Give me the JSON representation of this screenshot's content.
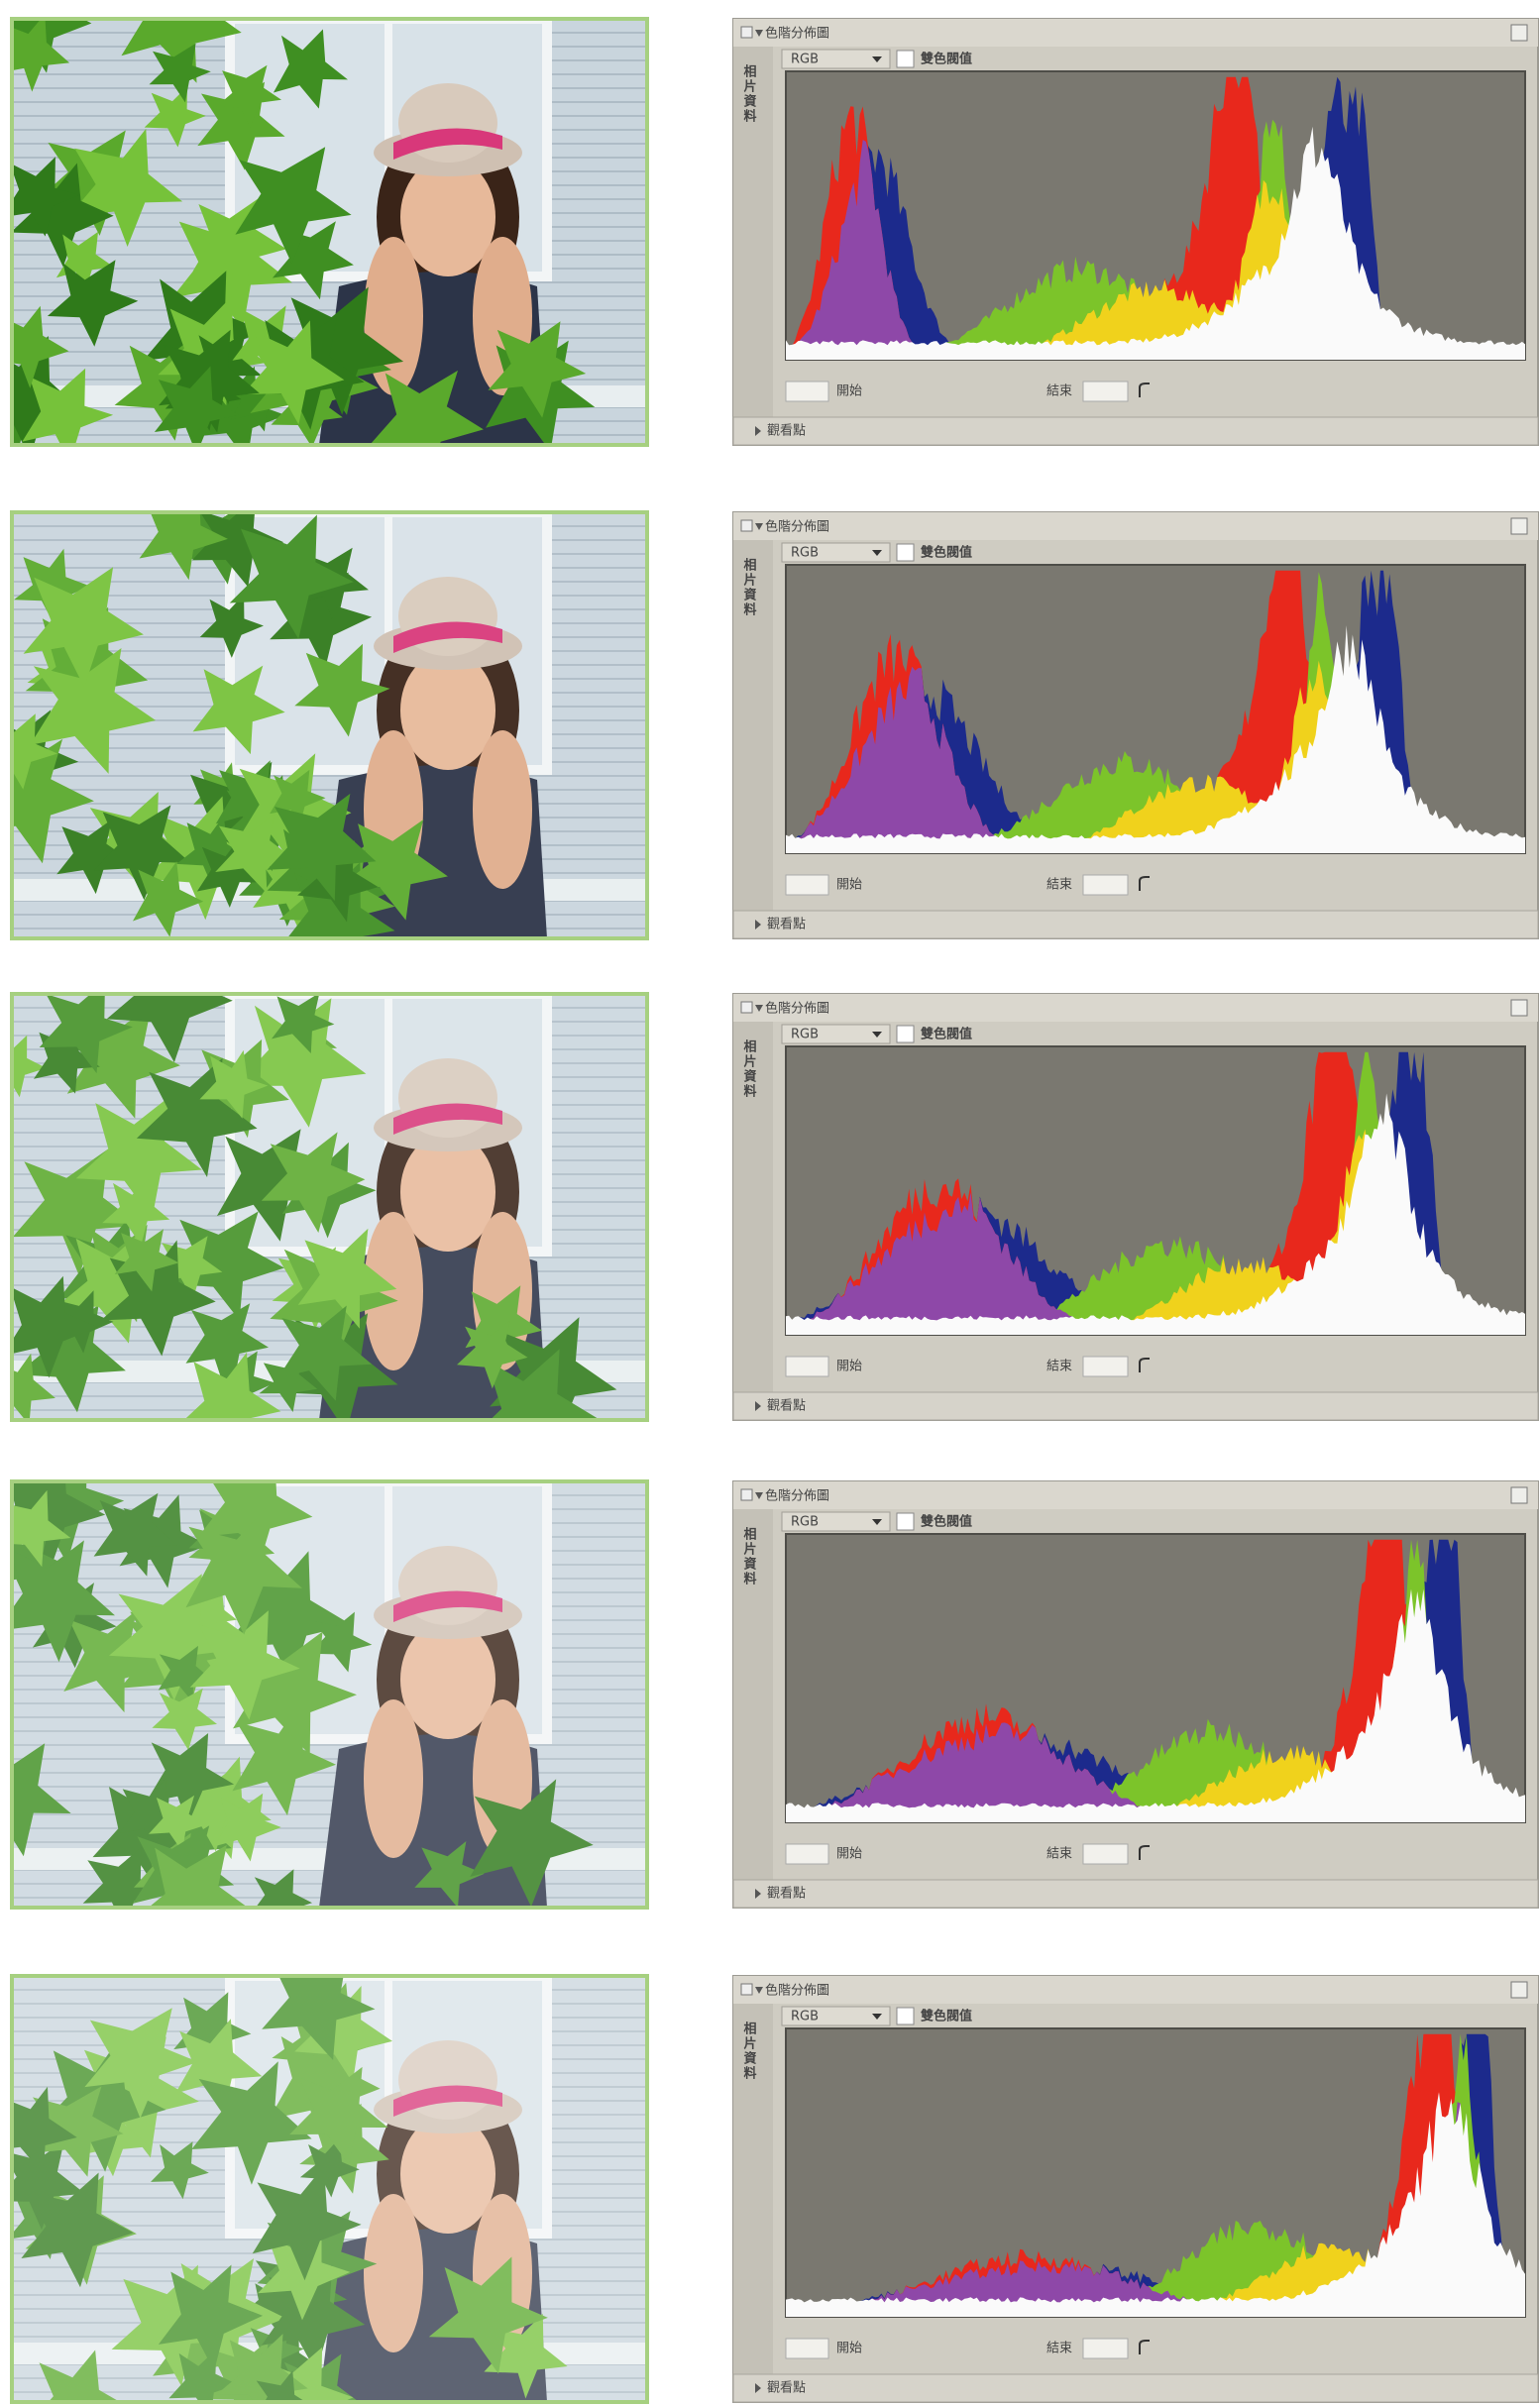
{
  "panels": [
    {
      "title": "色階分佈圖",
      "side_tab": "相片資料",
      "channel": "RGB",
      "checkbox_label": "雙色閥值",
      "start_label": "開始",
      "end_label": "結束",
      "footer": "觀看點"
    },
    {
      "title": "色階分佈圖",
      "side_tab": "相片資料",
      "channel": "RGB",
      "checkbox_label": "雙色閥值",
      "start_label": "開始",
      "end_label": "結束",
      "footer": "觀看點"
    },
    {
      "title": "色階分佈圖",
      "side_tab": "相片資料",
      "channel": "RGB",
      "checkbox_label": "雙色閥值",
      "start_label": "開始",
      "end_label": "結束",
      "footer": "觀看點"
    },
    {
      "title": "色階分佈圖",
      "side_tab": "相片資料",
      "channel": "RGB",
      "checkbox_label": "雙色閥值",
      "start_label": "開始",
      "end_label": "結束",
      "footer": "觀看點"
    },
    {
      "title": "色階分佈圖",
      "side_tab": "相片資料",
      "channel": "RGB",
      "checkbox_label": "雙色閥值",
      "start_label": "開始",
      "end_label": "結束",
      "footer": "觀看點"
    }
  ]
}
